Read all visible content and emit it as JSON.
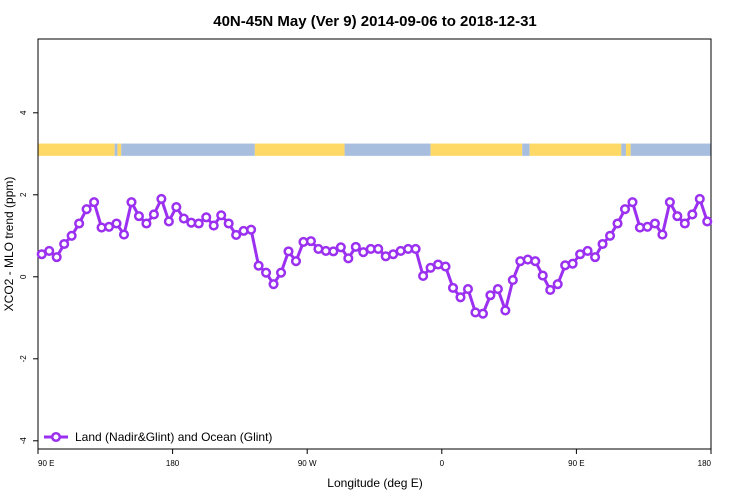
{
  "chart_data": {
    "type": "line",
    "title": "40N-45N May (Ver 9)   2014-09-06 to 2018-12-31",
    "xlabel": "Longitude (deg E)",
    "ylabel": "XCO2 - MLO trend (ppm)",
    "xlim": [
      90,
      450
    ],
    "ylim": [
      -4.2,
      5.8
    ],
    "x_ticks": [
      {
        "value": 90,
        "label": "90 E"
      },
      {
        "value": 162,
        "label": "180"
      },
      {
        "value": 234,
        "label": "90 W"
      },
      {
        "value": 306,
        "label": "0"
      },
      {
        "value": 378,
        "label": "90 E"
      },
      {
        "value": 450,
        "label": "180"
      }
    ],
    "y_ticks": [
      {
        "value": -4,
        "label": "-4"
      },
      {
        "value": -2,
        "label": "-2"
      },
      {
        "value": 0,
        "label": "0"
      },
      {
        "value": 2,
        "label": "2"
      },
      {
        "value": 4,
        "label": "4"
      }
    ],
    "grid": false,
    "legend_position": "bottom-left",
    "colors": {
      "series": "#9b30f0",
      "land": "#ffd966",
      "ocean": "#a8bede"
    },
    "surface_strip": {
      "y_range": [
        2.95,
        3.25
      ],
      "segments": [
        {
          "from": 90,
          "to": 131,
          "type": "land"
        },
        {
          "from": 131,
          "to": 132.5,
          "type": "ocean"
        },
        {
          "from": 132.5,
          "to": 134.5,
          "type": "land"
        },
        {
          "from": 134.5,
          "to": 206,
          "type": "ocean"
        },
        {
          "from": 206,
          "to": 254,
          "type": "land"
        },
        {
          "from": 254,
          "to": 300,
          "type": "ocean"
        },
        {
          "from": 300,
          "to": 349,
          "type": "land"
        },
        {
          "from": 349,
          "to": 353,
          "type": "ocean"
        },
        {
          "from": 353,
          "to": 402,
          "type": "land"
        },
        {
          "from": 402,
          "to": 404.5,
          "type": "ocean"
        },
        {
          "from": 404.5,
          "to": 407,
          "type": "land"
        },
        {
          "from": 407,
          "to": 450,
          "type": "ocean"
        }
      ]
    },
    "series": [
      {
        "name": "Land (Nadir&Glint) and Ocean (Glint)",
        "x": [
          92,
          96,
          100,
          104,
          108,
          112,
          116,
          120,
          124,
          128,
          132,
          136,
          140,
          144,
          148,
          152,
          156,
          160,
          164,
          168,
          172,
          176,
          180,
          184,
          188,
          192,
          196,
          200,
          204,
          208,
          212,
          216,
          220,
          224,
          228,
          232,
          236,
          240,
          244,
          248,
          252,
          256,
          260,
          264,
          268,
          272,
          276,
          280,
          284,
          288,
          292,
          296,
          300,
          304,
          308,
          312,
          316,
          320,
          324,
          328,
          332,
          336,
          340,
          344,
          348,
          352,
          356,
          360,
          364,
          368,
          372,
          376,
          380,
          384,
          388,
          392,
          396,
          400,
          404,
          408,
          412,
          416,
          420,
          424,
          428,
          432,
          436,
          440,
          444,
          448
        ],
        "y": [
          0.55,
          0.63,
          0.48,
          0.8,
          1.0,
          1.3,
          1.65,
          1.82,
          1.2,
          1.22,
          1.3,
          1.03,
          1.82,
          1.48,
          1.3,
          1.52,
          1.9,
          1.35,
          1.7,
          1.42,
          1.32,
          1.3,
          1.45,
          1.25,
          1.5,
          1.3,
          1.02,
          1.12,
          1.15,
          0.27,
          0.1,
          -0.18,
          0.1,
          0.62,
          0.38,
          0.85,
          0.87,
          0.68,
          0.63,
          0.62,
          0.72,
          0.45,
          0.73,
          0.6,
          0.68,
          0.68,
          0.5,
          0.55,
          0.63,
          0.68,
          0.68,
          0.02,
          0.22,
          0.3,
          0.25,
          -0.27,
          -0.5,
          -0.3,
          -0.87,
          -0.9,
          -0.45,
          -0.3,
          -0.82,
          -0.08,
          0.38,
          0.42,
          0.38,
          0.03,
          -0.32,
          -0.18,
          0.28,
          0.32,
          0.55,
          0.63,
          0.48,
          0.8,
          1.0,
          1.3,
          1.65,
          1.82,
          1.2,
          1.22,
          1.3,
          1.03,
          1.82,
          1.48,
          1.3,
          1.52,
          1.9,
          1.35
        ]
      }
    ]
  }
}
